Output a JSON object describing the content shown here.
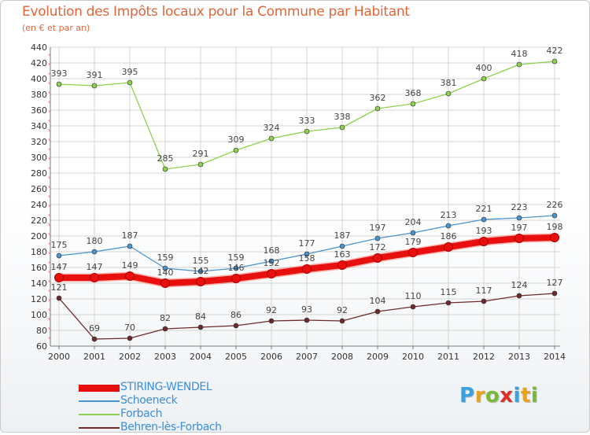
{
  "title": "Evolution des Impôts locaux pour la Commune par Habitant",
  "subtitle": "(en € et par an)",
  "logo": {
    "text": "Proxiti",
    "letter_colors": [
      "#3aa0e0",
      "#e8a21c",
      "#7ab83a",
      "#d9302a",
      "#3aa0e0",
      "#e8a21c",
      "#7ab83a"
    ]
  },
  "colors": {
    "grid": "#d4d4d4",
    "axis": "#7a7a7a",
    "tick_text": "#333333",
    "value_text": "#444444",
    "legend_text": "#3b8fd8"
  },
  "chart_data": {
    "type": "line",
    "title": "Evolution des Impôts locaux pour la Commune par Habitant",
    "subtitle": "(en € et par an)",
    "xlabel": "",
    "ylabel": "",
    "x": [
      "2000",
      "2001",
      "2002",
      "2003",
      "2004",
      "2005",
      "2006",
      "2007",
      "2008",
      "2009",
      "2010",
      "2011",
      "2012",
      "2013",
      "2014"
    ],
    "ylim": [
      60,
      440
    ],
    "yticks": [
      60,
      80,
      100,
      120,
      140,
      160,
      180,
      200,
      220,
      240,
      260,
      280,
      300,
      320,
      340,
      360,
      380,
      400,
      420,
      440
    ],
    "grid": true,
    "legend_position": "bottom-left",
    "series": [
      {
        "name": "STIRING-WENDEL",
        "color": "#e8100e",
        "emphasis": true,
        "values": [
          147,
          147,
          149,
          140,
          142,
          146,
          152,
          158,
          163,
          172,
          179,
          186,
          193,
          197,
          198
        ]
      },
      {
        "name": "Schoeneck",
        "color": "#4a94d0",
        "emphasis": false,
        "values": [
          175,
          180,
          187,
          159,
          155,
          159,
          168,
          177,
          187,
          197,
          204,
          213,
          221,
          223,
          226
        ]
      },
      {
        "name": "Forbach",
        "color": "#8ed14f",
        "emphasis": false,
        "values": [
          393,
          391,
          395,
          285,
          291,
          309,
          324,
          333,
          338,
          362,
          368,
          381,
          400,
          418,
          422
        ]
      },
      {
        "name": "Behren-lès-Forbach",
        "color": "#6e2a2a",
        "emphasis": false,
        "values": [
          121,
          69,
          70,
          82,
          84,
          86,
          92,
          93,
          92,
          104,
          110,
          115,
          117,
          124,
          127
        ]
      }
    ]
  }
}
